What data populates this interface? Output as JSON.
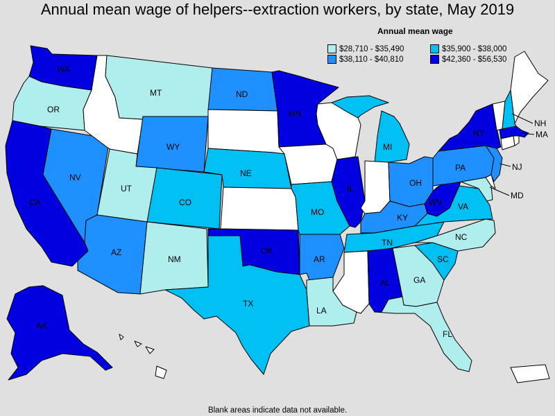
{
  "title": "Annual mean wage of helpers--extraction workers, by state, May 2019",
  "legend": {
    "title": "Annual mean wage",
    "items": [
      {
        "range": "$28,710 - $35,490",
        "color": "#b0eeee"
      },
      {
        "range": "$35,900 - $38,000",
        "color": "#00bff3"
      },
      {
        "range": "$38,110 - $40,810",
        "color": "#1e90ff"
      },
      {
        "range": "$42,360 - $56,530",
        "color": "#0000e0"
      }
    ]
  },
  "footer": "Blank areas indicate data not available.",
  "colors": {
    "background": "#e0e0e0",
    "no_data": "#ffffff",
    "tier1": "#b0eeee",
    "tier2": "#00bff3",
    "tier3": "#1e90ff",
    "tier4": "#0000e0"
  },
  "states": {
    "WA": {
      "label": "WA",
      "tier": 4
    },
    "OR": {
      "label": "OR",
      "tier": 1
    },
    "CA": {
      "label": "CA",
      "tier": 4
    },
    "NV": {
      "label": "NV",
      "tier": 3
    },
    "ID": {
      "label": "",
      "tier": 0
    },
    "MT": {
      "label": "MT",
      "tier": 1
    },
    "WY": {
      "label": "WY",
      "tier": 3
    },
    "UT": {
      "label": "UT",
      "tier": 1
    },
    "AZ": {
      "label": "AZ",
      "tier": 3
    },
    "CO": {
      "label": "CO",
      "tier": 2
    },
    "NM": {
      "label": "NM",
      "tier": 1
    },
    "ND": {
      "label": "ND",
      "tier": 3
    },
    "SD": {
      "label": "",
      "tier": 0
    },
    "NE": {
      "label": "NE",
      "tier": 2
    },
    "KS": {
      "label": "",
      "tier": 0
    },
    "OK": {
      "label": "OK",
      "tier": 4
    },
    "TX": {
      "label": "TX",
      "tier": 2
    },
    "MN": {
      "label": "MN",
      "tier": 4
    },
    "IA": {
      "label": "",
      "tier": 0
    },
    "MO": {
      "label": "MO",
      "tier": 2
    },
    "AR": {
      "label": "AR",
      "tier": 3
    },
    "LA": {
      "label": "LA",
      "tier": 1
    },
    "WI": {
      "label": "",
      "tier": 0
    },
    "IL": {
      "label": "IL",
      "tier": 4
    },
    "MI": {
      "label": "MI",
      "tier": 2
    },
    "IN": {
      "label": "",
      "tier": 0
    },
    "OH": {
      "label": "OH",
      "tier": 3
    },
    "KY": {
      "label": "KY",
      "tier": 3
    },
    "TN": {
      "label": "TN",
      "tier": 2
    },
    "MS": {
      "label": "",
      "tier": 0
    },
    "AL": {
      "label": "AL",
      "tier": 4
    },
    "GA": {
      "label": "GA",
      "tier": 1
    },
    "FL": {
      "label": "FL",
      "tier": 1
    },
    "SC": {
      "label": "SC",
      "tier": 2
    },
    "NC": {
      "label": "NC",
      "tier": 1
    },
    "VA": {
      "label": "VA",
      "tier": 2
    },
    "WV": {
      "label": "WV",
      "tier": 4
    },
    "MD": {
      "label": "MD",
      "tier": 1
    },
    "DE": {
      "label": "",
      "tier": 0
    },
    "PA": {
      "label": "PA",
      "tier": 3
    },
    "NJ": {
      "label": "NJ",
      "tier": 3
    },
    "NY": {
      "label": "NY",
      "tier": 4
    },
    "CT": {
      "label": "",
      "tier": 0
    },
    "RI": {
      "label": "",
      "tier": 0
    },
    "MA": {
      "label": "MA",
      "tier": 4
    },
    "VT": {
      "label": "",
      "tier": 0
    },
    "NH": {
      "label": "NH",
      "tier": 2
    },
    "ME": {
      "label": "",
      "tier": 0
    },
    "AK": {
      "label": "AK",
      "tier": 4
    },
    "HI": {
      "label": "",
      "tier": 0
    },
    "PR": {
      "label": "",
      "tier": 0
    }
  }
}
